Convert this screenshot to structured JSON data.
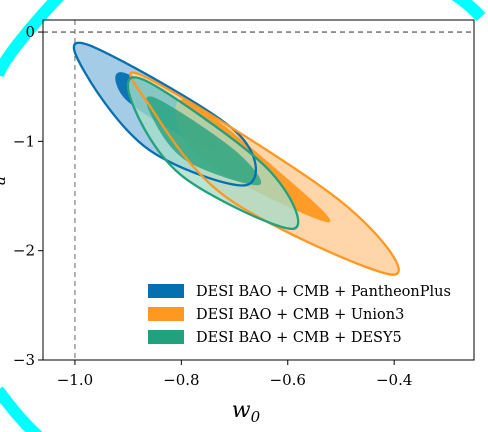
{
  "chart_data": {
    "type": "contour",
    "xlabel": "w_0",
    "ylabel": "w_a",
    "xlim": [
      -1.06,
      -0.25
    ],
    "ylim": [
      -3.0,
      0.11
    ],
    "x_ticks": [
      {
        "value": -1.0,
        "label": "−1.0"
      },
      {
        "value": -0.8,
        "label": "−0.8"
      },
      {
        "value": -0.6,
        "label": "−0.6"
      },
      {
        "value": -0.4,
        "label": "−0.4"
      }
    ],
    "y_ticks": [
      {
        "value": 0,
        "label": "0"
      },
      {
        "value": -1,
        "label": "−1"
      },
      {
        "value": -2,
        "label": "−2"
      },
      {
        "value": -3,
        "label": "−3"
      }
    ],
    "reference_lines": {
      "x": -1.0,
      "y": 0
    },
    "legend_position": "lower-right",
    "colors": {
      "pantheon_edge": "#0570b0",
      "pantheon_fill_inner": "#0570b0",
      "pantheon_fill_outer": "#9fc9e6",
      "union_edge": "#ff9820",
      "union_fill_inner": "#ff9820",
      "union_fill_outer": "#ffd3a4",
      "desy_edge": "#21a17e",
      "desy_fill_inner": "#21a17e",
      "desy_fill_outer": "#a6dcc8",
      "ring": "#00ffff"
    },
    "series": [
      {
        "name": "DESI BAO + CMB + PantheonPlus",
        "key": "pantheon",
        "center": [
          -0.825,
          -0.73
        ],
        "contour_68": [
          [
            -0.909,
            -0.37
          ],
          [
            -0.76,
            -0.78
          ],
          [
            -0.733,
            -1.07
          ],
          [
            -0.81,
            -0.92
          ],
          [
            -0.908,
            -0.6
          ]
        ],
        "contour_95": [
          [
            -0.974,
            -0.12
          ],
          [
            -0.7,
            -0.9
          ],
          [
            -0.678,
            -1.4
          ],
          [
            -0.86,
            -1.08
          ],
          [
            -0.98,
            -0.38
          ]
        ]
      },
      {
        "name": "DESI BAO + CMB + Union3",
        "key": "union",
        "center": [
          -0.65,
          -1.3
        ],
        "contour_68": [
          [
            -0.786,
            -0.63
          ],
          [
            -0.594,
            -1.37
          ],
          [
            -0.525,
            -1.74
          ],
          [
            -0.72,
            -1.3
          ],
          [
            -0.802,
            -0.92
          ]
        ],
        "contour_95": [
          [
            -0.864,
            -0.42
          ],
          [
            -0.5,
            -1.55
          ],
          [
            -0.402,
            -2.22
          ],
          [
            -0.71,
            -1.53
          ],
          [
            -0.86,
            -0.67
          ]
        ]
      },
      {
        "name": "DESI BAO + CMB + DESY5",
        "key": "desy",
        "center": [
          -0.72,
          -1.1
        ],
        "contour_68": [
          [
            -0.85,
            -0.6
          ],
          [
            -0.7,
            -1.08
          ],
          [
            -0.654,
            -1.4
          ],
          [
            -0.79,
            -1.18
          ],
          [
            -0.855,
            -0.78
          ]
        ],
        "contour_95": [
          [
            -0.87,
            -0.44
          ],
          [
            -0.64,
            -1.24
          ],
          [
            -0.59,
            -1.8
          ],
          [
            -0.795,
            -1.33
          ],
          [
            -0.89,
            -0.68
          ]
        ]
      }
    ]
  }
}
